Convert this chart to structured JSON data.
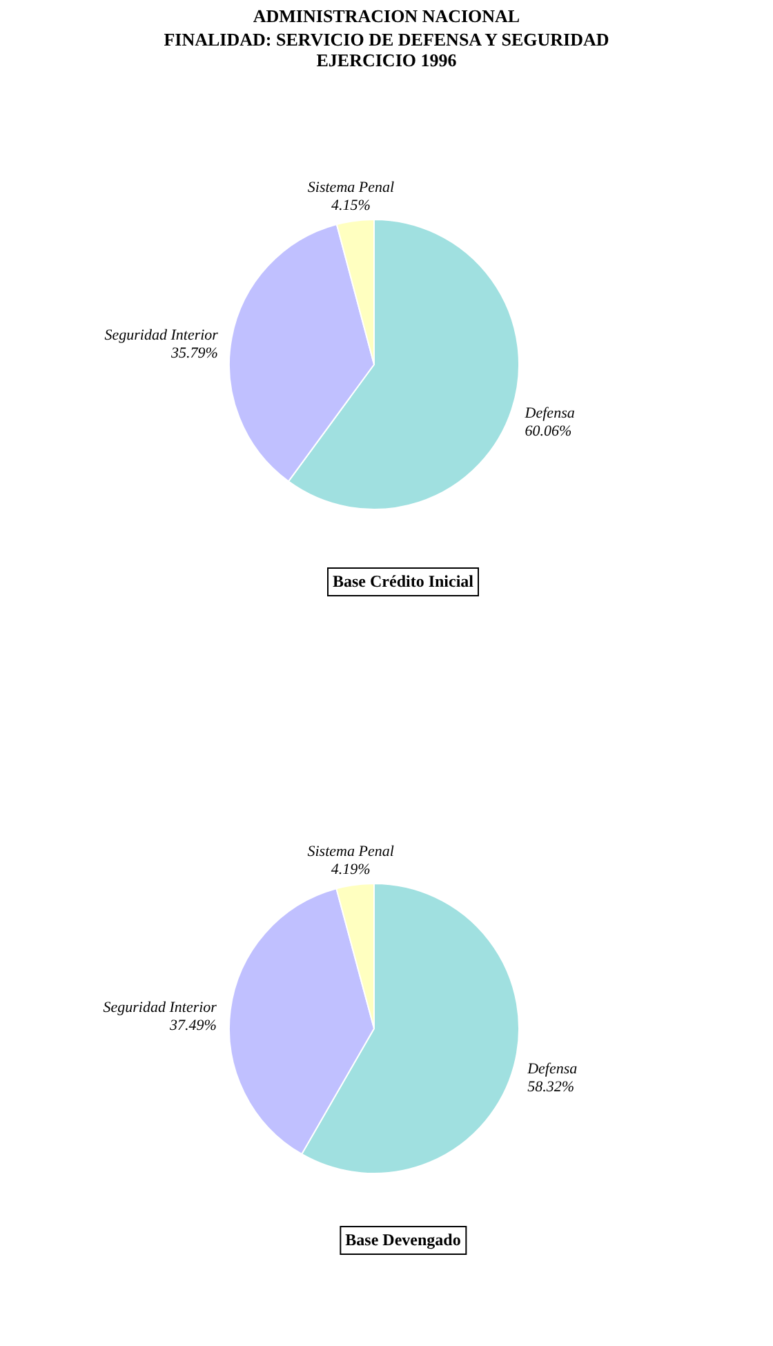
{
  "chart_data": [
    {
      "type": "pie",
      "title": "ADMINISTRACION NACIONAL",
      "subtitle": "FINALIDAD: SERVICIO DE DEFENSA Y SEGURIDAD\nEJERCICIO 1996",
      "categories": [
        "Defensa",
        "Seguridad Interior",
        "Sistema Penal"
      ],
      "values": [
        60.06,
        35.79,
        4.15
      ],
      "value_labels": [
        "60.06%",
        "35.79%",
        "4.15%"
      ],
      "colors": [
        "#a0e0e0",
        "#c0c0ff",
        "#ffffc0"
      ],
      "annotations": [
        "Base Crédito Inicial"
      ]
    },
    {
      "type": "pie",
      "categories": [
        "Defensa",
        "Seguridad Interior",
        "Sistema Penal"
      ],
      "values": [
        58.32,
        37.49,
        4.19
      ],
      "value_labels": [
        "58.32%",
        "37.49%",
        "4.19%"
      ],
      "colors": [
        "#a0e0e0",
        "#c0c0ff",
        "#ffffc0"
      ],
      "annotations": [
        "Base Devengado"
      ]
    }
  ]
}
